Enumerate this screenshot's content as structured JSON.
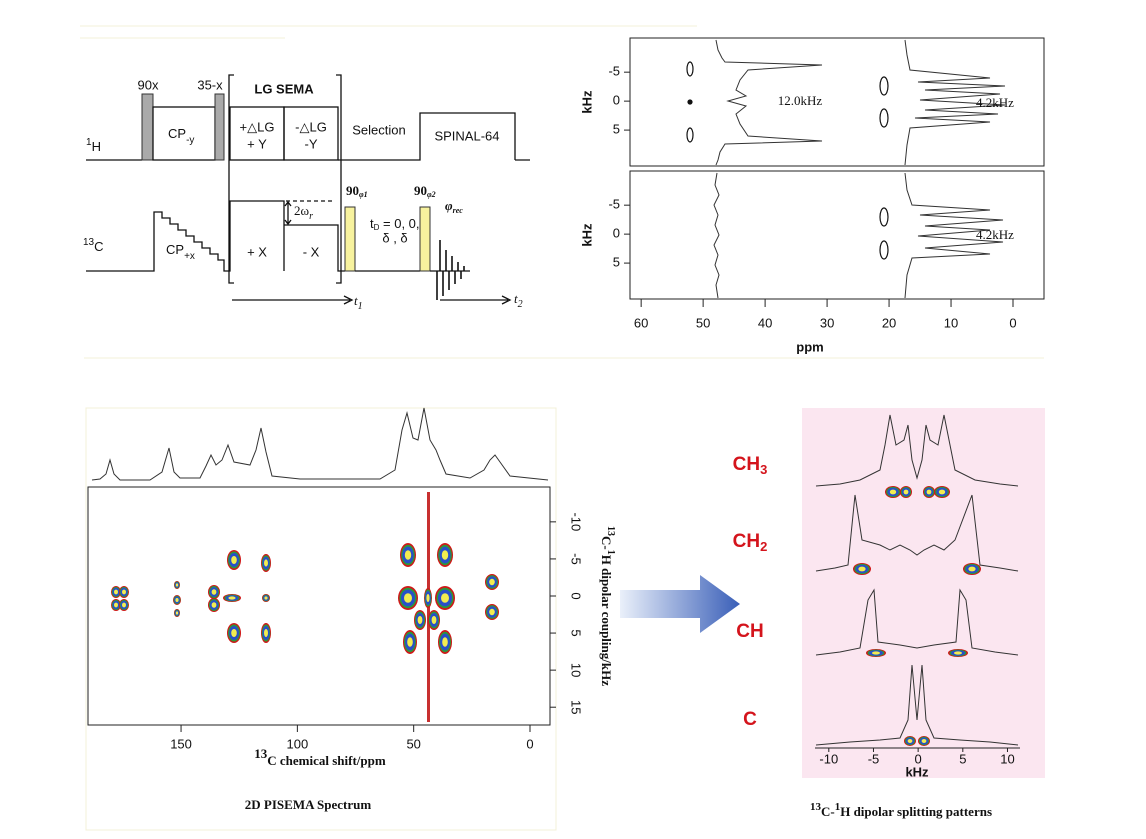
{
  "pulse_sequence": {
    "p90x": "90x",
    "p35x": "35-x",
    "lg_sema": "LG SEMA",
    "h_label": {
      "sup": "1",
      "main": "H"
    },
    "cp_y": {
      "main": "CP",
      "sub": "-y"
    },
    "plus_lg": [
      "+△LG",
      "+ Y"
    ],
    "minus_lg": [
      "-△LG",
      "-Y"
    ],
    "selection": "Selection",
    "spinal": "SPINAL-64",
    "c_label": {
      "sup": "13",
      "main": "C"
    },
    "cp_x": {
      "main": "CP",
      "sub": "+x"
    },
    "plus_x": "+ X",
    "minus_x": "- X",
    "omega": {
      "main": "2ω",
      "sub": "r"
    },
    "p90_1": {
      "main": "90",
      "sub": "φ1"
    },
    "td": [
      "t",
      "D",
      " = 0, 0,",
      "δ , δ"
    ],
    "p90_2": {
      "main": "90",
      "sub": "φ2"
    },
    "phi_rec": {
      "main": "φ",
      "sub": "rec"
    },
    "t1": {
      "main": "t",
      "sub": "1"
    },
    "t2": {
      "main": "t",
      "sub": "2"
    }
  },
  "slice_spectra": {
    "ylabel": "kHz",
    "xlabel": "ppm",
    "xlim": [
      61.8,
      -5
    ],
    "xticks": [
      60,
      50,
      40,
      30,
      20,
      10,
      0
    ],
    "ylim": [
      -10.9,
      11.2
    ],
    "yticks": [
      -5,
      0,
      5
    ],
    "annotations": [
      "12.0kHz",
      "4.2kHz",
      "4.2kHz"
    ]
  },
  "pisema": {
    "xlabel": {
      "sup": "13",
      "main": "C chemical shift/ppm"
    },
    "ylabel": {
      "sup1": "13",
      "mid": "C-",
      "sup2": "1",
      "main": "H dipolar coupling/kHz"
    },
    "xlim": [
      190,
      -8.6
    ],
    "xticks": [
      150,
      100,
      50,
      0
    ],
    "ylim": [
      -14.7,
      17.4
    ],
    "yticks": [
      -10,
      -5,
      0,
      5,
      10,
      15
    ],
    "caption": "2D PISEMA Spectrum"
  },
  "splitting": {
    "groups": [
      {
        "main": "CH",
        "sub": "3"
      },
      {
        "main": "CH",
        "sub": "2"
      },
      {
        "main": "CH",
        "sub": ""
      },
      {
        "main": "C",
        "sub": ""
      }
    ],
    "xlim": [
      -13,
      14.2
    ],
    "xticks": [
      -10,
      -5,
      0,
      5,
      10
    ],
    "xlabel": "kHz",
    "caption": {
      "sup1": "13",
      "mid": "C-",
      "sup2": "1",
      "main": "H dipolar splitting patterns"
    }
  }
}
